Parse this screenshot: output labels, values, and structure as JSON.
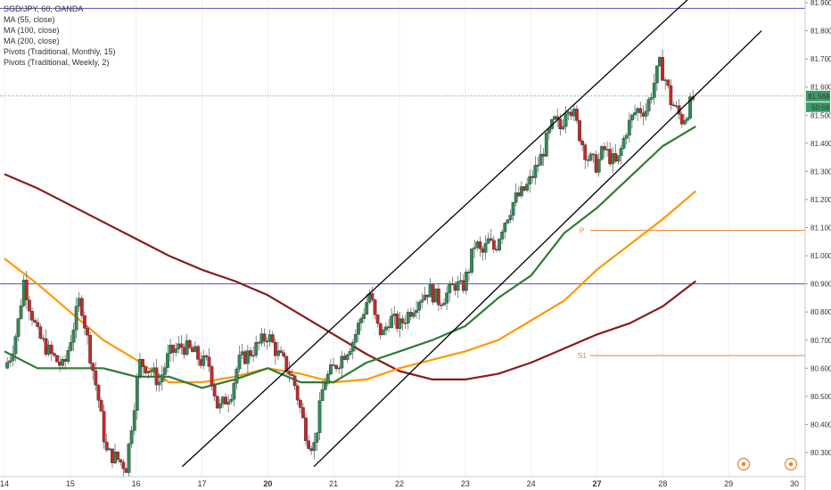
{
  "legend": {
    "symbol": "SGD/JPY, 60, OANDA",
    "ma55": "MA (55, close)",
    "ma100": "MA (100, close)",
    "ma200": "MA (200, close)",
    "pivots_monthly": "Pivots (Traditional, Monthly, 15)",
    "pivots_weekly": "Pivots (Traditional, Weekly, 2)"
  },
  "price_label": {
    "value": "81.568",
    "countdown": "50:59"
  },
  "pivot_labels": {
    "p": "P",
    "s1": "S1"
  },
  "colors": {
    "up_candle": "#2e8b57",
    "down_candle": "#c62828",
    "ma55": "#2e7d32",
    "ma100": "#ff9800",
    "ma200": "#8b1a1a",
    "pivot_line": "#e8812a",
    "horizontal_level": "#5050c0",
    "price_line": "#3a9e6a",
    "channel": "#000000"
  },
  "chart_data": {
    "type": "candlestick",
    "symbol": "SGD/JPY",
    "interval": "60",
    "source": "OANDA",
    "ylim": [
      80.25,
      81.92
    ],
    "y_ticks": [
      "81.900",
      "81.800",
      "81.700",
      "81.600",
      "81.500",
      "81.400",
      "81.300",
      "81.200",
      "81.100",
      "81.000",
      "80.900",
      "80.800",
      "80.700",
      "80.600",
      "80.500",
      "80.400",
      "80.300"
    ],
    "x_ticks": [
      "14",
      "15",
      "16",
      "17",
      "20",
      "21",
      "22",
      "23",
      "24",
      "27",
      "28",
      "29",
      "30"
    ],
    "last_price": 81.568,
    "horizontal_levels": [
      81.88,
      80.9
    ],
    "pivots": [
      {
        "label": "P",
        "value": 81.09
      },
      {
        "label": "S1",
        "value": 80.645
      }
    ],
    "close_path": [
      {
        "x": 0,
        "y": 80.6
      },
      {
        "x": 0.1,
        "y": 80.65
      },
      {
        "x": 0.2,
        "y": 80.75
      },
      {
        "x": 0.3,
        "y": 80.92
      },
      {
        "x": 0.35,
        "y": 80.85
      },
      {
        "x": 0.5,
        "y": 80.72
      },
      {
        "x": 0.7,
        "y": 80.65
      },
      {
        "x": 0.9,
        "y": 80.6
      },
      {
        "x": 1.0,
        "y": 80.7
      },
      {
        "x": 1.15,
        "y": 80.85
      },
      {
        "x": 1.3,
        "y": 80.65
      },
      {
        "x": 1.42,
        "y": 80.5
      },
      {
        "x": 1.55,
        "y": 80.3
      },
      {
        "x": 1.7,
        "y": 80.28
      },
      {
        "x": 1.85,
        "y": 80.25
      },
      {
        "x": 2.05,
        "y": 80.62
      },
      {
        "x": 2.2,
        "y": 80.6
      },
      {
        "x": 2.35,
        "y": 80.55
      },
      {
        "x": 2.5,
        "y": 80.65
      },
      {
        "x": 2.7,
        "y": 80.68
      },
      {
        "x": 2.9,
        "y": 80.65
      },
      {
        "x": 3.0,
        "y": 80.62
      },
      {
        "x": 3.1,
        "y": 80.62
      },
      {
        "x": 3.25,
        "y": 80.45
      },
      {
        "x": 3.45,
        "y": 80.52
      },
      {
        "x": 3.55,
        "y": 80.62
      },
      {
        "x": 3.7,
        "y": 80.65
      },
      {
        "x": 3.85,
        "y": 80.68
      },
      {
        "x": 4.0,
        "y": 80.72
      },
      {
        "x": 4.15,
        "y": 80.65
      },
      {
        "x": 4.3,
        "y": 80.6
      },
      {
        "x": 4.4,
        "y": 80.55
      },
      {
        "x": 4.5,
        "y": 80.45
      },
      {
        "x": 4.6,
        "y": 80.35
      },
      {
        "x": 4.7,
        "y": 80.32
      },
      {
        "x": 4.85,
        "y": 80.55
      },
      {
        "x": 5.0,
        "y": 80.6
      },
      {
        "x": 5.15,
        "y": 80.65
      },
      {
        "x": 5.3,
        "y": 80.7
      },
      {
        "x": 5.45,
        "y": 80.8
      },
      {
        "x": 5.55,
        "y": 80.87
      },
      {
        "x": 5.65,
        "y": 80.75
      },
      {
        "x": 5.75,
        "y": 80.72
      },
      {
        "x": 5.85,
        "y": 80.78
      },
      {
        "x": 6.0,
        "y": 80.75
      },
      {
        "x": 6.15,
        "y": 80.8
      },
      {
        "x": 6.3,
        "y": 80.85
      },
      {
        "x": 6.45,
        "y": 80.88
      },
      {
        "x": 6.6,
        "y": 80.84
      },
      {
        "x": 6.75,
        "y": 80.87
      },
      {
        "x": 6.85,
        "y": 80.9
      },
      {
        "x": 6.95,
        "y": 80.88
      },
      {
        "x": 7.05,
        "y": 80.95
      },
      {
        "x": 7.15,
        "y": 81.05
      },
      {
        "x": 7.25,
        "y": 81.0
      },
      {
        "x": 7.35,
        "y": 81.05
      },
      {
        "x": 7.45,
        "y": 81.02
      },
      {
        "x": 7.55,
        "y": 81.1
      },
      {
        "x": 7.65,
        "y": 81.15
      },
      {
        "x": 7.75,
        "y": 81.2
      },
      {
        "x": 7.85,
        "y": 81.22
      },
      {
        "x": 7.95,
        "y": 81.25
      },
      {
        "x": 8.05,
        "y": 81.3
      },
      {
        "x": 8.15,
        "y": 81.35
      },
      {
        "x": 8.25,
        "y": 81.42
      },
      {
        "x": 8.35,
        "y": 81.48
      },
      {
        "x": 8.45,
        "y": 81.45
      },
      {
        "x": 8.55,
        "y": 81.55
      },
      {
        "x": 8.65,
        "y": 81.5
      },
      {
        "x": 8.75,
        "y": 81.42
      },
      {
        "x": 8.85,
        "y": 81.35
      },
      {
        "x": 9.0,
        "y": 81.32
      },
      {
        "x": 9.1,
        "y": 81.38
      },
      {
        "x": 9.2,
        "y": 81.35
      },
      {
        "x": 9.3,
        "y": 81.32
      },
      {
        "x": 9.45,
        "y": 81.45
      },
      {
        "x": 9.6,
        "y": 81.52
      },
      {
        "x": 9.75,
        "y": 81.52
      },
      {
        "x": 9.85,
        "y": 81.6
      },
      {
        "x": 9.95,
        "y": 81.68
      },
      {
        "x": 10.05,
        "y": 81.62
      },
      {
        "x": 10.12,
        "y": 81.55
      },
      {
        "x": 10.2,
        "y": 81.52
      },
      {
        "x": 10.3,
        "y": 81.48
      },
      {
        "x": 10.4,
        "y": 81.53
      },
      {
        "x": 10.48,
        "y": 81.568
      }
    ],
    "ma55": [
      {
        "x": 0,
        "y": 80.66
      },
      {
        "x": 0.5,
        "y": 80.6
      },
      {
        "x": 1.0,
        "y": 80.6
      },
      {
        "x": 1.5,
        "y": 80.6
      },
      {
        "x": 2.0,
        "y": 80.57
      },
      {
        "x": 2.5,
        "y": 80.57
      },
      {
        "x": 3.0,
        "y": 80.53
      },
      {
        "x": 3.5,
        "y": 80.56
      },
      {
        "x": 4.0,
        "y": 80.6
      },
      {
        "x": 4.5,
        "y": 80.55
      },
      {
        "x": 5.0,
        "y": 80.55
      },
      {
        "x": 5.5,
        "y": 80.62
      },
      {
        "x": 6.0,
        "y": 80.66
      },
      {
        "x": 6.5,
        "y": 80.7
      },
      {
        "x": 7.0,
        "y": 80.75
      },
      {
        "x": 7.5,
        "y": 80.85
      },
      {
        "x": 8.0,
        "y": 80.93
      },
      {
        "x": 8.5,
        "y": 81.08
      },
      {
        "x": 9.0,
        "y": 81.17
      },
      {
        "x": 9.5,
        "y": 81.28
      },
      {
        "x": 10.0,
        "y": 81.39
      },
      {
        "x": 10.5,
        "y": 81.46
      }
    ],
    "ma100": [
      {
        "x": 0,
        "y": 80.99
      },
      {
        "x": 0.5,
        "y": 80.9
      },
      {
        "x": 1.0,
        "y": 80.8
      },
      {
        "x": 1.5,
        "y": 80.7
      },
      {
        "x": 2.0,
        "y": 80.63
      },
      {
        "x": 2.5,
        "y": 80.55
      },
      {
        "x": 3.0,
        "y": 80.55
      },
      {
        "x": 3.5,
        "y": 80.57
      },
      {
        "x": 4.0,
        "y": 80.6
      },
      {
        "x": 4.5,
        "y": 80.58
      },
      {
        "x": 5.0,
        "y": 80.55
      },
      {
        "x": 5.5,
        "y": 80.56
      },
      {
        "x": 6.0,
        "y": 80.6
      },
      {
        "x": 6.5,
        "y": 80.63
      },
      {
        "x": 7.0,
        "y": 80.66
      },
      {
        "x": 7.5,
        "y": 80.7
      },
      {
        "x": 8.0,
        "y": 80.77
      },
      {
        "x": 8.5,
        "y": 80.84
      },
      {
        "x": 9.0,
        "y": 80.95
      },
      {
        "x": 9.5,
        "y": 81.04
      },
      {
        "x": 10.0,
        "y": 81.13
      },
      {
        "x": 10.5,
        "y": 81.23
      }
    ],
    "ma200": [
      {
        "x": 0,
        "y": 81.29
      },
      {
        "x": 0.5,
        "y": 81.24
      },
      {
        "x": 1.0,
        "y": 81.18
      },
      {
        "x": 1.5,
        "y": 81.12
      },
      {
        "x": 2.0,
        "y": 81.06
      },
      {
        "x": 2.5,
        "y": 81.0
      },
      {
        "x": 3.0,
        "y": 80.95
      },
      {
        "x": 3.5,
        "y": 80.91
      },
      {
        "x": 4.0,
        "y": 80.86
      },
      {
        "x": 4.5,
        "y": 80.79
      },
      {
        "x": 5.0,
        "y": 80.72
      },
      {
        "x": 5.5,
        "y": 80.65
      },
      {
        "x": 6.0,
        "y": 80.59
      },
      {
        "x": 6.5,
        "y": 80.56
      },
      {
        "x": 7.0,
        "y": 80.56
      },
      {
        "x": 7.5,
        "y": 80.58
      },
      {
        "x": 8.0,
        "y": 80.62
      },
      {
        "x": 8.5,
        "y": 80.67
      },
      {
        "x": 9.0,
        "y": 80.72
      },
      {
        "x": 9.5,
        "y": 80.76
      },
      {
        "x": 10.0,
        "y": 80.82
      },
      {
        "x": 10.5,
        "y": 80.91
      }
    ],
    "channel_lines": [
      {
        "x1": 2.7,
        "y1": 80.25,
        "x2": 10.42,
        "y2": 81.92
      },
      {
        "x1": 4.7,
        "y1": 80.25,
        "x2": 11.5,
        "y2": 81.8
      }
    ]
  }
}
